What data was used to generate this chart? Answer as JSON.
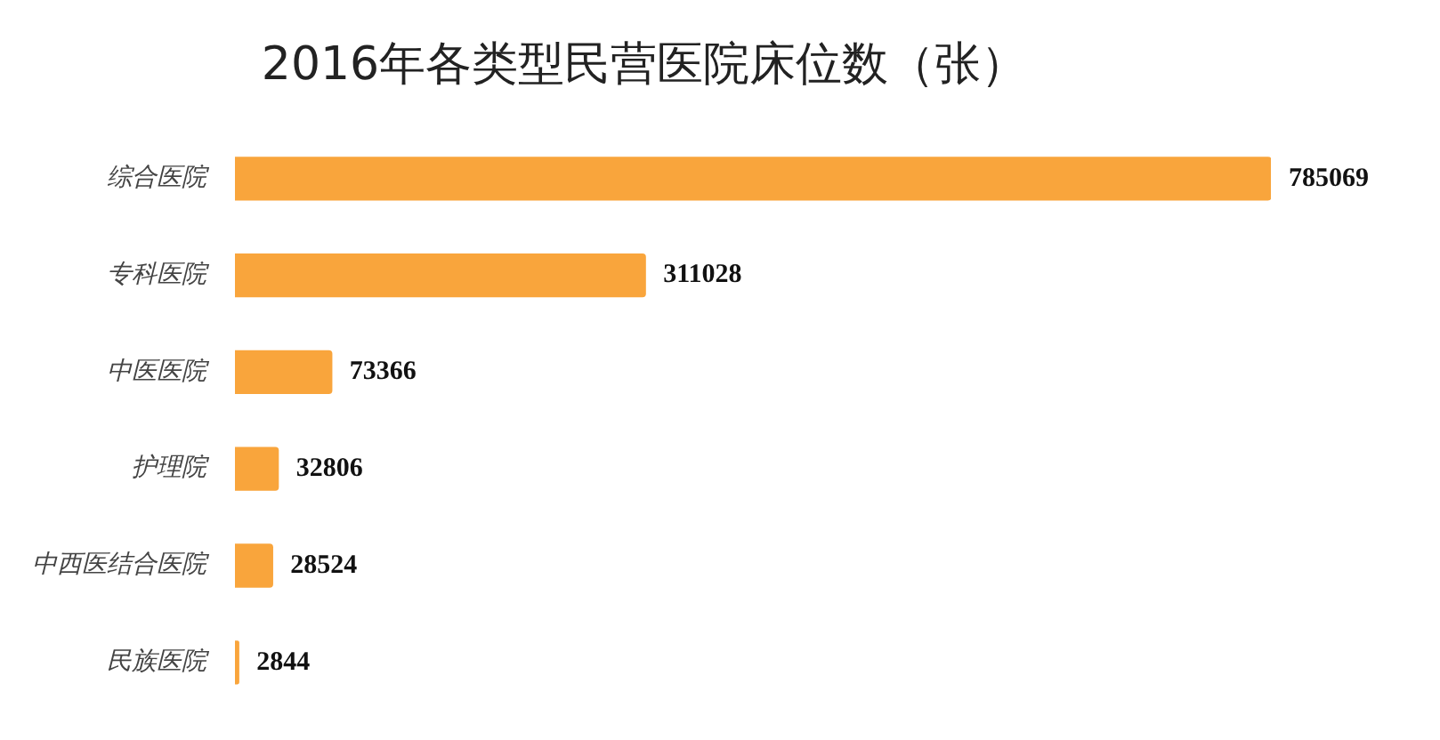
{
  "chart_data": {
    "type": "bar",
    "orientation": "horizontal",
    "title": "2016年各类型民营医院床位数（张）",
    "categories": [
      "综合医院",
      "专科医院",
      "中医医院",
      "护理院",
      "中西医结合医院",
      "民族医院"
    ],
    "values": [
      785069,
      311028,
      73366,
      32806,
      28524,
      2844
    ],
    "color": "#f9a53c",
    "data_labels": true,
    "legend": false
  }
}
